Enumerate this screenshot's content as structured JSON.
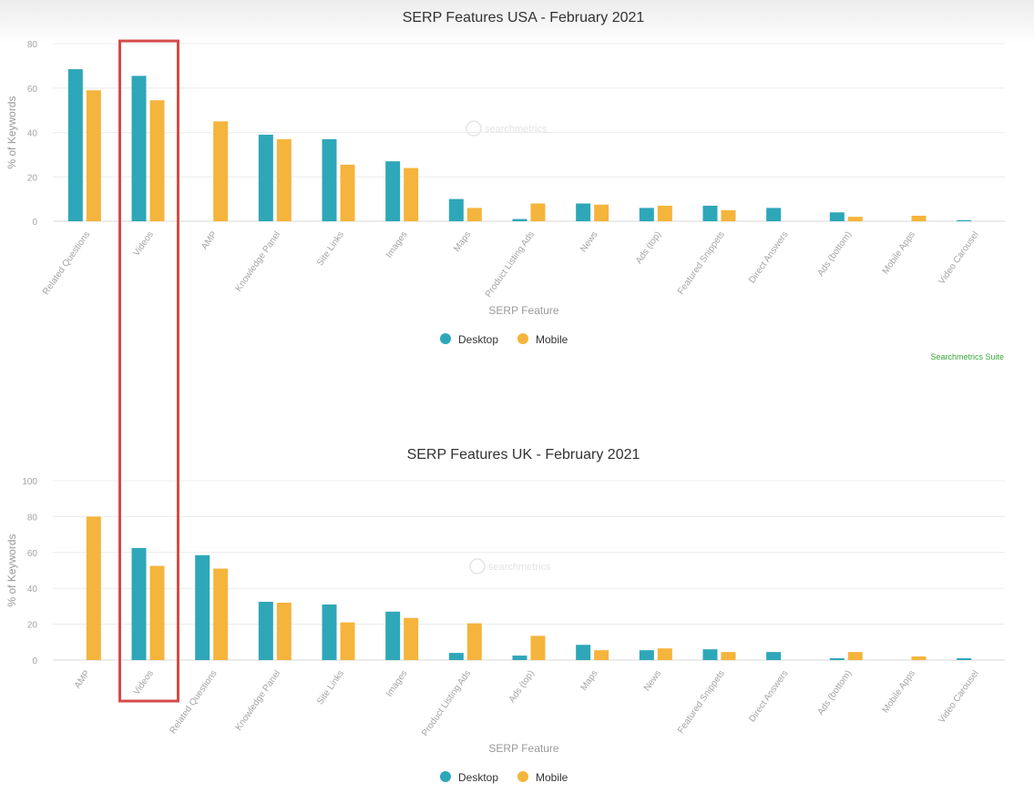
{
  "colors": {
    "desktop": "#2ea7b9",
    "mobile": "#f5b43c",
    "highlight": "#d64a4a",
    "credit": "#3aa83a"
  },
  "highlight_category": "Videos",
  "watermark": "searchmetrics",
  "chart_data": [
    {
      "type": "bar",
      "title": "SERP Features USA - February 2021",
      "xlabel": "SERP Feature",
      "ylabel": "% of Keywords",
      "ylim": [
        0,
        80
      ],
      "yticks": [
        0,
        20,
        40,
        60,
        80
      ],
      "grid": true,
      "legend_placement": "bottom-center",
      "source": "Searchmetrics Suite",
      "categories": [
        "Related Questions",
        "Videos",
        "AMP",
        "Knowledge Panel",
        "Site Links",
        "Images",
        "Maps",
        "Product Listing Ads",
        "News",
        "Ads (top)",
        "Featured Snippets",
        "Direct Answers",
        "Ads (bottom)",
        "Mobile Apps",
        "Video Carousel"
      ],
      "series": [
        {
          "name": "Desktop",
          "values": [
            68.5,
            65.5,
            0,
            39,
            37,
            27,
            10,
            1,
            8,
            6,
            7,
            6,
            4,
            0,
            0.5
          ]
        },
        {
          "name": "Mobile",
          "values": [
            59,
            54.5,
            45,
            37,
            25.5,
            24,
            6,
            8,
            7.5,
            7,
            5,
            0,
            2,
            2.5,
            0
          ]
        }
      ]
    },
    {
      "type": "bar",
      "title": "SERP Features UK - February 2021",
      "xlabel": "SERP Feature",
      "ylabel": "% of Keywords",
      "ylim": [
        0,
        100
      ],
      "yticks": [
        0,
        20,
        40,
        60,
        80,
        100
      ],
      "grid": true,
      "legend_placement": "bottom-center",
      "source": "",
      "categories": [
        "AMP",
        "Videos",
        "Related Questions",
        "Knowledge Panel",
        "Site Links",
        "Images",
        "Product Listing Ads",
        "Ads (top)",
        "Maps",
        "News",
        "Featured Snippets",
        "Direct Answers",
        "Ads (bottom)",
        "Mobile Apps",
        "Video Carousel"
      ],
      "series": [
        {
          "name": "Desktop",
          "values": [
            0,
            62.5,
            58.5,
            32.5,
            31,
            27,
            4,
            2.5,
            8.5,
            5.5,
            6,
            4.5,
            1,
            0,
            1
          ]
        },
        {
          "name": "Mobile",
          "values": [
            80,
            52.5,
            51,
            32,
            21,
            23.5,
            20.5,
            13.5,
            5.5,
            6.5,
            4.5,
            0,
            4.5,
            2,
            0
          ]
        }
      ]
    }
  ]
}
